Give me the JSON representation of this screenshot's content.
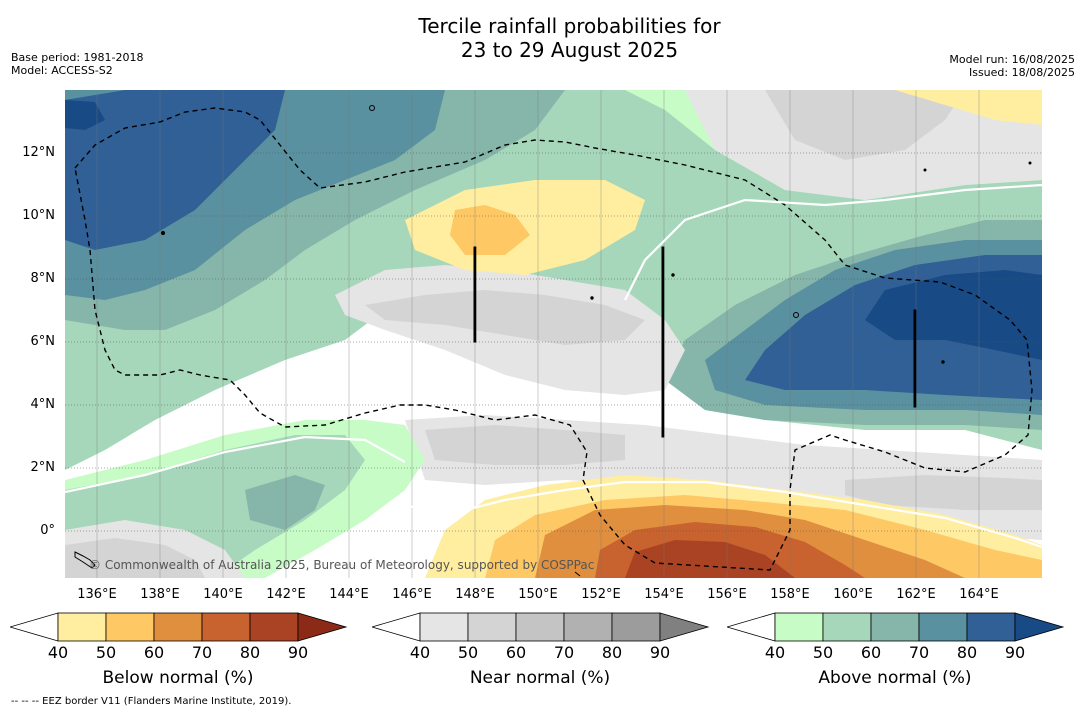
{
  "title_line1": "Tercile rainfall probabilities for",
  "title_line2": "23 to 29 August 2025",
  "base_period": "Base period: 1981-2018",
  "model": "Model: ACCESS-S2",
  "model_run": "Model run: 16/08/2025",
  "issued": "Issued: 18/08/2025",
  "lat_labels": [
    "12°N",
    "10°N",
    "8°N",
    "6°N",
    "4°N",
    "2°N",
    "0°"
  ],
  "lon_labels": [
    "136°E",
    "138°E",
    "140°E",
    "142°E",
    "144°E",
    "146°E",
    "148°E",
    "150°E",
    "152°E",
    "154°E",
    "156°E",
    "158°E",
    "160°E",
    "162°E",
    "164°E"
  ],
  "copyright": "© Commonwealth of Australia 2025, Bureau of Meteorology, supported by COSPPac",
  "colorbars": [
    {
      "title": "Below normal (%)",
      "ticks": [
        "40",
        "50",
        "60",
        "70",
        "80",
        "90"
      ],
      "colors": [
        "#ffffff",
        "#ffeda0",
        "#fec965",
        "#e08f3f",
        "#c8622e",
        "#a94323",
        "#8b2b17"
      ]
    },
    {
      "title": "Near normal (%)",
      "ticks": [
        "40",
        "50",
        "60",
        "70",
        "80",
        "90"
      ],
      "colors": [
        "#ffffff",
        "#e5e5e5",
        "#d4d4d4",
        "#c4c4c4",
        "#b1b1b1",
        "#9c9c9c",
        "#808080"
      ]
    },
    {
      "title": "Above normal (%)",
      "ticks": [
        "40",
        "50",
        "60",
        "70",
        "80",
        "90"
      ],
      "colors": [
        "#ffffff",
        "#c7fcc6",
        "#a6d7bb",
        "#86b5aa",
        "#5a91a0",
        "#306096",
        "#184a86"
      ]
    }
  ],
  "footnote": "--  --  -- EEZ border V11 (Flanders Marine Institute, 2019)."
}
